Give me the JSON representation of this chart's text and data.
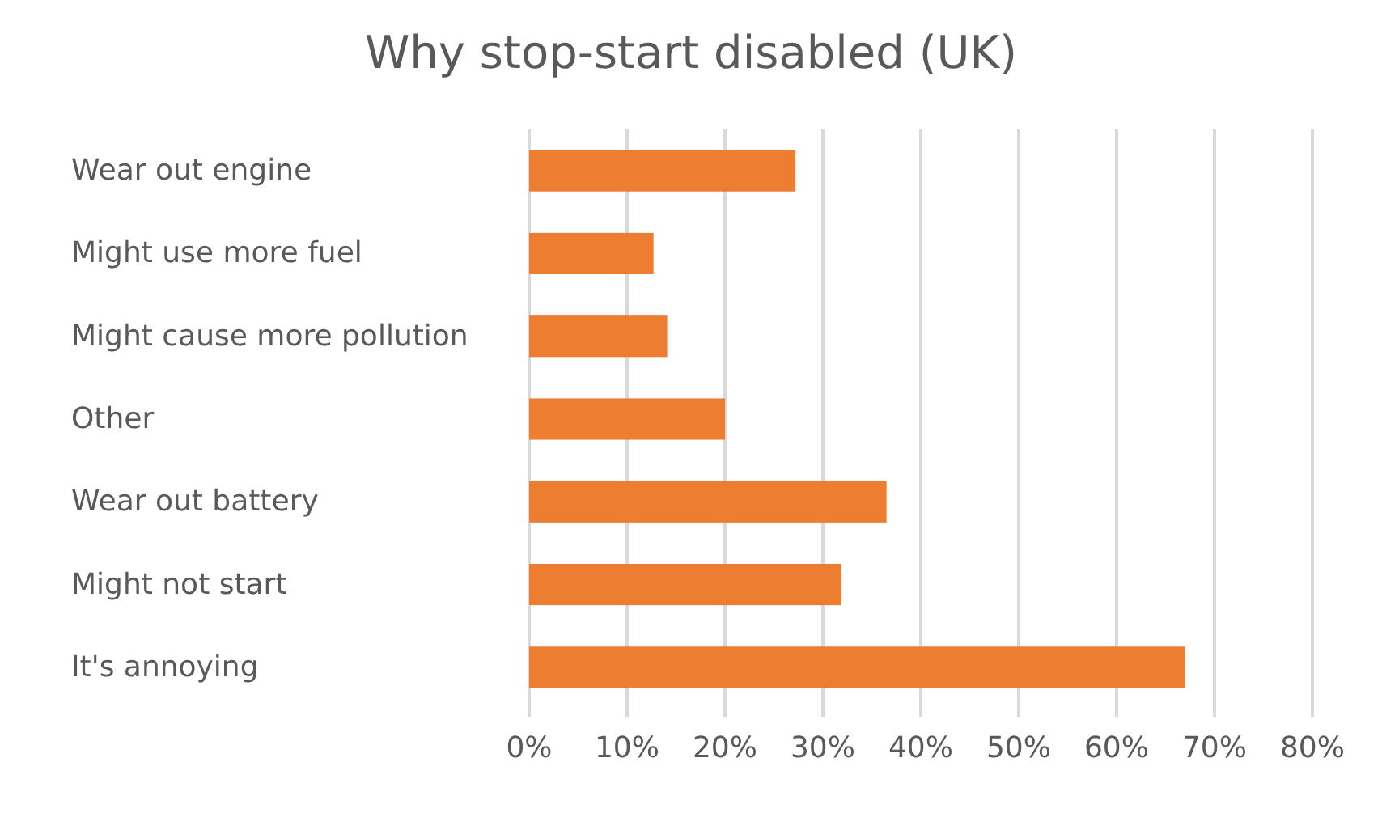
{
  "chart_data": {
    "type": "bar",
    "orientation": "horizontal",
    "title": "Why stop-start disabled (UK)",
    "categories": [
      "Wear out engine",
      "Might use more fuel",
      "Might cause more pollution",
      "Other",
      "Wear out battery",
      "Might not start",
      "It's annoying"
    ],
    "values": [
      27.2,
      12.7,
      14.1,
      20,
      36.5,
      31.9,
      67
    ],
    "color": "#ed7d31",
    "xlim": [
      0,
      80
    ],
    "xticks": [
      {
        "value": 0,
        "label": "0%"
      },
      {
        "value": 10,
        "label": "10%"
      },
      {
        "value": 20,
        "label": "20%"
      },
      {
        "value": 30,
        "label": "30%"
      },
      {
        "value": 40,
        "label": "40%"
      },
      {
        "value": 50,
        "label": "50%"
      },
      {
        "value": 60,
        "label": "60%"
      },
      {
        "value": 70,
        "label": "70%"
      },
      {
        "value": 80,
        "label": "80%"
      }
    ],
    "grid": "x"
  }
}
